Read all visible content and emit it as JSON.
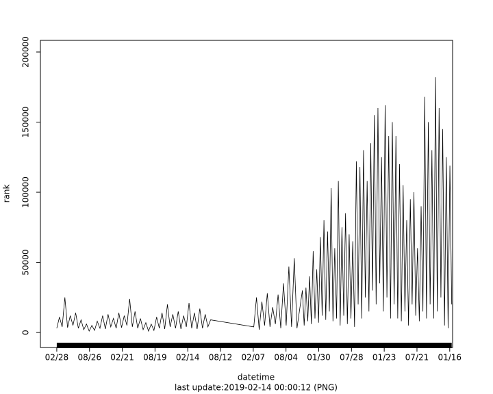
{
  "chart_data": {
    "type": "line",
    "x_label": "datetime",
    "y_label": "rank",
    "subtitle": "last update:2019-02-14 00:00:12 (PNG)",
    "xlim": [
      -91,
      2200
    ],
    "ylim": [
      -10700,
      208300
    ],
    "yticks": [
      0,
      50000,
      100000,
      150000,
      200000
    ],
    "xticks": [
      {
        "value": 0,
        "label": "02/28"
      },
      {
        "value": 182,
        "label": "08/26"
      },
      {
        "value": 364,
        "label": "02/21"
      },
      {
        "value": 546,
        "label": "08/19"
      },
      {
        "value": 728,
        "label": "02/14"
      },
      {
        "value": 910,
        "label": "08/12"
      },
      {
        "value": 1092,
        "label": "02/07"
      },
      {
        "value": 1274,
        "label": "08/04"
      },
      {
        "value": 1456,
        "label": "01/30"
      },
      {
        "value": 1638,
        "label": "07/28"
      },
      {
        "value": 1820,
        "label": "01/23"
      },
      {
        "value": 2002,
        "label": "07/21"
      },
      {
        "value": 2184,
        "label": "01/16"
      }
    ],
    "series": [
      {
        "color": "#000000",
        "x": [
          0,
          15,
          30,
          45,
          60,
          75,
          90,
          105,
          120,
          135,
          150,
          165,
          180,
          195,
          210,
          225,
          240,
          255,
          270,
          285,
          300,
          315,
          330,
          345,
          360,
          375,
          390,
          405,
          420,
          435,
          450,
          465,
          480,
          495,
          510,
          525,
          540,
          555,
          570,
          585,
          600,
          615,
          630,
          645,
          660,
          675,
          690,
          705,
          720,
          735,
          750,
          765,
          780,
          795,
          810,
          825,
          840,
          855,
          1095,
          1110,
          1125,
          1140,
          1155,
          1170,
          1185,
          1200,
          1215,
          1230,
          1245,
          1260,
          1275,
          1290,
          1305,
          1320,
          1335,
          1365,
          1375,
          1385,
          1395,
          1405,
          1415,
          1425,
          1435,
          1445,
          1455,
          1465,
          1475,
          1485,
          1495,
          1505,
          1515,
          1525,
          1535,
          1545,
          1555,
          1565,
          1575,
          1585,
          1595,
          1605,
          1615,
          1625,
          1635,
          1645,
          1655,
          1665,
          1675,
          1685,
          1695,
          1705,
          1715,
          1725,
          1735,
          1745,
          1755,
          1765,
          1775,
          1785,
          1795,
          1805,
          1815,
          1825,
          1835,
          1845,
          1855,
          1865,
          1875,
          1885,
          1895,
          1905,
          1915,
          1925,
          1935,
          1945,
          1955,
          1965,
          1975,
          1985,
          1995,
          2005,
          2015,
          2025,
          2035,
          2045,
          2055,
          2065,
          2075,
          2085,
          2095,
          2105,
          2115,
          2125,
          2135,
          2145,
          2155,
          2165,
          2175,
          2185,
          2195
        ],
        "values": [
          3000,
          11000,
          4000,
          25000,
          3500,
          12000,
          5000,
          14000,
          3000,
          9000,
          2000,
          6000,
          1000,
          5000,
          1500,
          8000,
          3000,
          12000,
          2500,
          13000,
          4000,
          10000,
          3000,
          14000,
          3500,
          12000,
          5000,
          24000,
          4000,
          15000,
          3000,
          10000,
          2000,
          7000,
          1000,
          6000,
          1500,
          11000,
          3000,
          14000,
          2500,
          20000,
          4000,
          13000,
          3000,
          15000,
          2500,
          12000,
          4000,
          21000,
          3000,
          14000,
          2500,
          17000,
          3000,
          13000,
          4000,
          9000,
          4000,
          25000,
          2000,
          22000,
          5000,
          28000,
          4000,
          18000,
          6000,
          27000,
          3000,
          35000,
          5000,
          47000,
          4000,
          53000,
          3000,
          30000,
          5000,
          32000,
          8000,
          40000,
          6000,
          58000,
          10000,
          45000,
          7000,
          68000,
          12000,
          80000,
          9000,
          72000,
          15000,
          103000,
          8000,
          60000,
          10000,
          108000,
          5000,
          75000,
          12000,
          85000,
          6000,
          70000,
          10000,
          65000,
          4000,
          122000,
          20000,
          118000,
          10000,
          130000,
          25000,
          108000,
          15000,
          135000,
          30000,
          155000,
          20000,
          160000,
          35000,
          125000,
          15000,
          162000,
          25000,
          140000,
          10000,
          150000,
          20000,
          140000,
          10000,
          120000,
          8000,
          105000,
          15000,
          80000,
          5000,
          95000,
          20000,
          100000,
          12000,
          60000,
          8000,
          90000,
          15000,
          168000,
          10000,
          150000,
          20000,
          130000,
          10000,
          182000,
          15000,
          160000,
          25000,
          145000,
          5000,
          125000,
          3000,
          119000,
          20000
        ]
      }
    ]
  }
}
